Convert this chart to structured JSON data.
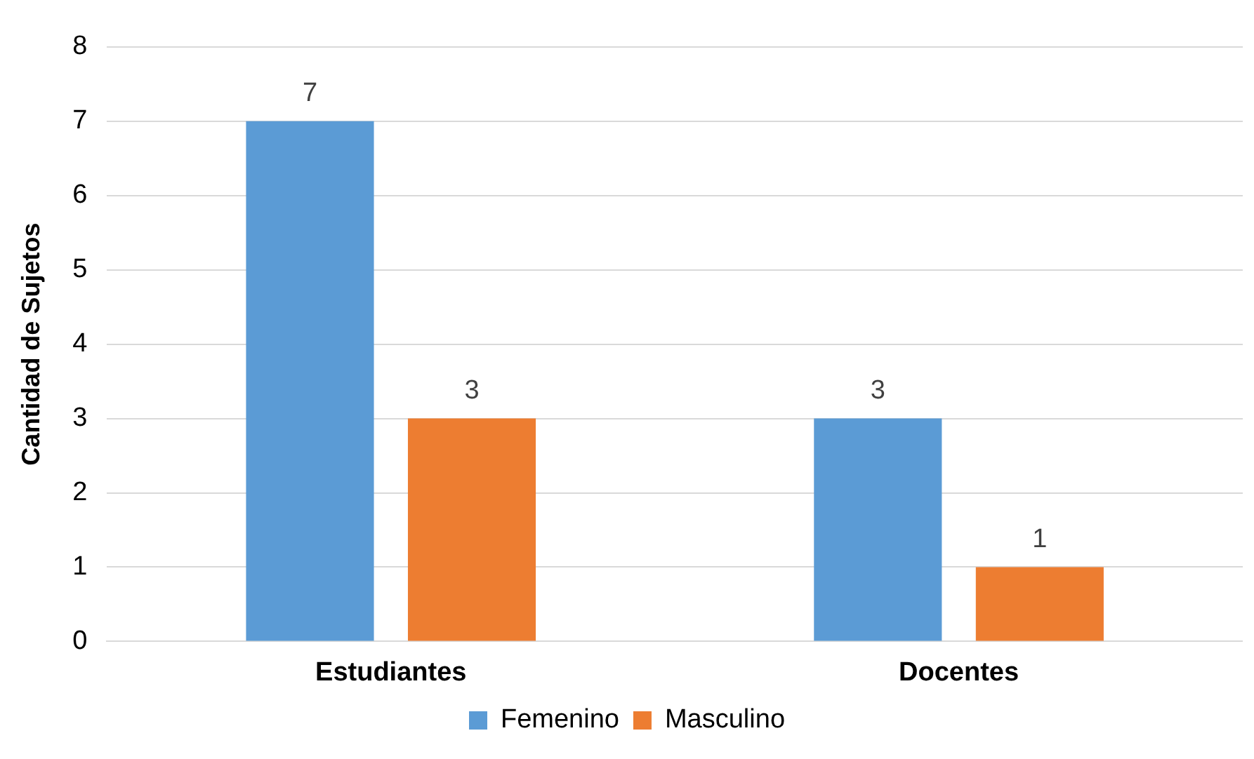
{
  "chart_data": {
    "type": "bar",
    "ylabel": "Cantidad de Sujetos",
    "categories": [
      "Estudiantes",
      "Docentes"
    ],
    "series": [
      {
        "name": "Femenino",
        "color": "#5b9bd5",
        "values": [
          7,
          3
        ]
      },
      {
        "name": "Masculino",
        "color": "#ed7d31",
        "values": [
          3,
          1
        ]
      }
    ],
    "ylim": [
      0,
      8
    ],
    "yticks": [
      0,
      1,
      2,
      3,
      4,
      5,
      6,
      7,
      8
    ],
    "grid": "y",
    "legend": "bottom",
    "data_labels": true
  }
}
